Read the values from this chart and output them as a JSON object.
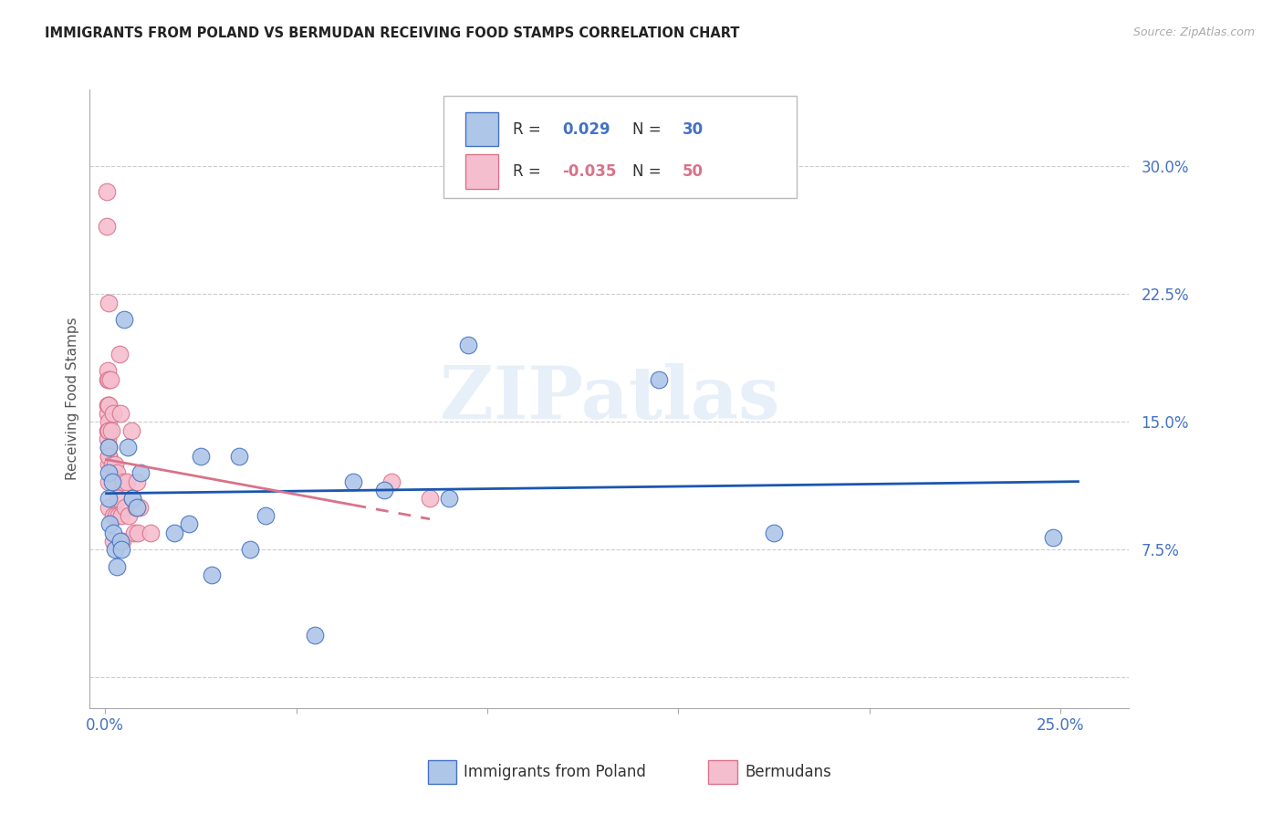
{
  "title": "IMMIGRANTS FROM POLAND VS BERMUDAN RECEIVING FOOD STAMPS CORRELATION CHART",
  "source": "Source: ZipAtlas.com",
  "ylabel": "Receiving Food Stamps",
  "x_ticks": [
    0.0,
    0.05,
    0.1,
    0.15,
    0.2,
    0.25
  ],
  "x_tick_labels": [
    "0.0%",
    "",
    "",
    "",
    "",
    "25.0%"
  ],
  "y_ticks": [
    0.0,
    0.075,
    0.15,
    0.225,
    0.3
  ],
  "y_tick_labels": [
    "",
    "7.5%",
    "15.0%",
    "22.5%",
    "30.0%"
  ],
  "xlim": [
    -0.004,
    0.268
  ],
  "ylim": [
    -0.018,
    0.345
  ],
  "poland_fill": "#aec6e8",
  "poland_edge": "#4472c4",
  "bermuda_fill": "#f5bece",
  "bermuda_edge": "#d9728a",
  "trend_poland_color": "#1a56b0",
  "trend_bermuda_color": "#d9728a",
  "legend_R_color": "#4472c4",
  "legend_N_color": "#4472c4",
  "watermark_text": "ZIPatlas",
  "poland_x": [
    0.0008,
    0.0008,
    0.001,
    0.0012,
    0.0018,
    0.002,
    0.0025,
    0.003,
    0.004,
    0.0042,
    0.005,
    0.006,
    0.0072,
    0.0082,
    0.0092,
    0.018,
    0.022,
    0.025,
    0.028,
    0.035,
    0.038,
    0.042,
    0.055,
    0.065,
    0.073,
    0.09,
    0.095,
    0.145,
    0.175,
    0.248
  ],
  "poland_y": [
    0.135,
    0.12,
    0.105,
    0.09,
    0.115,
    0.085,
    0.075,
    0.065,
    0.08,
    0.075,
    0.21,
    0.135,
    0.105,
    0.1,
    0.12,
    0.085,
    0.09,
    0.13,
    0.06,
    0.13,
    0.075,
    0.095,
    0.025,
    0.115,
    0.11,
    0.105,
    0.195,
    0.175,
    0.085,
    0.082
  ],
  "bermuda_x": [
    0.0005,
    0.0005,
    0.0006,
    0.0006,
    0.0007,
    0.0007,
    0.0007,
    0.0007,
    0.0008,
    0.0008,
    0.0008,
    0.0009,
    0.0009,
    0.0009,
    0.001,
    0.001,
    0.001,
    0.001,
    0.001,
    0.001,
    0.001,
    0.0015,
    0.0017,
    0.0018,
    0.002,
    0.002,
    0.0022,
    0.0025,
    0.0028,
    0.003,
    0.0032,
    0.0035,
    0.0038,
    0.004,
    0.0042,
    0.0045,
    0.0048,
    0.0052,
    0.0058,
    0.0062,
    0.0068,
    0.0072,
    0.0075,
    0.008,
    0.0082,
    0.0085,
    0.009,
    0.012,
    0.075,
    0.085
  ],
  "bermuda_y": [
    0.285,
    0.265,
    0.175,
    0.145,
    0.18,
    0.16,
    0.155,
    0.14,
    0.16,
    0.15,
    0.13,
    0.145,
    0.135,
    0.125,
    0.22,
    0.175,
    0.16,
    0.145,
    0.13,
    0.115,
    0.1,
    0.175,
    0.145,
    0.125,
    0.095,
    0.08,
    0.155,
    0.125,
    0.095,
    0.12,
    0.105,
    0.095,
    0.19,
    0.155,
    0.095,
    0.08,
    0.115,
    0.1,
    0.115,
    0.095,
    0.145,
    0.105,
    0.085,
    0.1,
    0.115,
    0.085,
    0.1,
    0.085,
    0.115,
    0.105
  ],
  "trend_poland_x0": 0.0,
  "trend_poland_x1": 0.255,
  "trend_poland_y0": 0.108,
  "trend_poland_y1": 0.115,
  "trend_bermuda_x0": 0.0,
  "trend_bermuda_x1": 0.085,
  "trend_bermuda_y0": 0.128,
  "trend_bermuda_y1": 0.093,
  "grid_color": "#cccccc",
  "background_color": "#ffffff",
  "title_fontsize": 10.5,
  "tick_color": "#4472c4",
  "marker_size": 180
}
